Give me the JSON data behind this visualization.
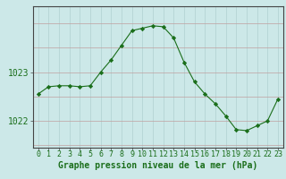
{
  "hours": [
    0,
    1,
    2,
    3,
    4,
    5,
    6,
    7,
    8,
    9,
    10,
    11,
    12,
    13,
    14,
    15,
    16,
    17,
    18,
    19,
    20,
    21,
    22,
    23
  ],
  "pressure": [
    1022.55,
    1022.7,
    1022.72,
    1022.72,
    1022.7,
    1022.72,
    1023.0,
    1023.25,
    1023.55,
    1023.85,
    1023.9,
    1023.95,
    1023.93,
    1023.7,
    1023.2,
    1022.8,
    1022.55,
    1022.35,
    1022.1,
    1021.82,
    1021.8,
    1021.9,
    1022.0,
    1022.45
  ],
  "line_color": "#1a6e1a",
  "marker_color": "#1a6e1a",
  "bg_color": "#cce8e8",
  "grid_color_v": "#b0d0d0",
  "grid_color_h": "#c0a0a0",
  "xlabel": "Graphe pression niveau de la mer (hPa)",
  "xlabel_color": "#1a6e1a",
  "ytick_labels": [
    "1022",
    "1023"
  ],
  "ytick_values": [
    1022.0,
    1023.0
  ],
  "ylim_min": 1021.45,
  "ylim_max": 1024.35,
  "xlim_min": -0.5,
  "xlim_max": 23.5,
  "font_size_xlabel": 7,
  "font_size_ytick": 7,
  "font_size_xtick": 6
}
